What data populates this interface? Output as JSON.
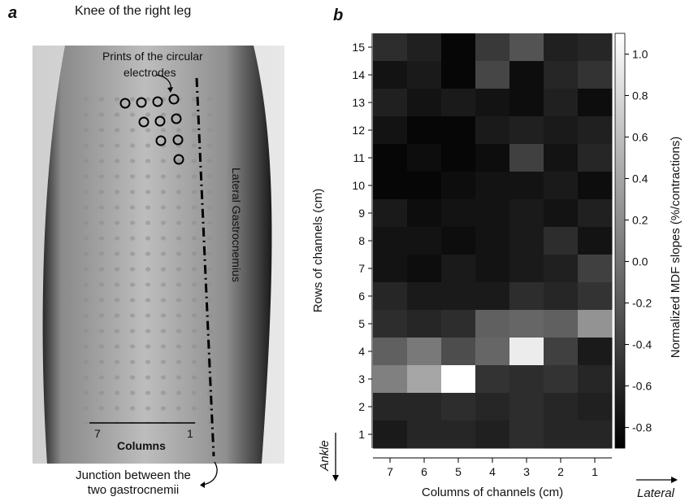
{
  "panel_a": {
    "letter": "a",
    "title": "Knee of the right leg",
    "labels": {
      "prints": "Prints of the circular electrodes",
      "muscle": "Lateral Gastrocnemius",
      "columns": "Columns",
      "col_left": "7",
      "col_right": "1"
    },
    "caption_line1": "Junction between the",
    "caption_line2": "two gastrocnemii"
  },
  "panel_b": {
    "letter": "b",
    "ankle_label": "Ankle",
    "lateral_label": "Lateral"
  },
  "chart_data": {
    "type": "heatmap",
    "xlabel": "Columns of channels (cm)",
    "ylabel": "Rows of channels (cm)",
    "colorbar_label": "Normalized MDF slopes (%/contractions)",
    "x_categories": [
      "7",
      "6",
      "5",
      "4",
      "3",
      "2",
      "1"
    ],
    "y_categories": [
      "15",
      "14",
      "13",
      "12",
      "11",
      "10",
      "9",
      "8",
      "7",
      "6",
      "5",
      "4",
      "3",
      "2",
      "1"
    ],
    "color_range": [
      -0.9,
      1.1
    ],
    "colorbar_ticks": [
      "1.0",
      "0.8",
      "0.6",
      "0.4",
      "0.2",
      "0.0",
      "-0.2",
      "-0.4",
      "-0.6",
      "-0.8"
    ],
    "colorbar_tick_values": [
      1.0,
      0.8,
      0.6,
      0.4,
      0.2,
      0.0,
      -0.2,
      -0.4,
      -0.6,
      -0.8
    ],
    "colormap": [
      "#000000",
      "#ffffff"
    ],
    "values": [
      [
        -0.55,
        -0.65,
        -0.85,
        -0.45,
        -0.25,
        -0.65,
        -0.6
      ],
      [
        -0.75,
        -0.7,
        -0.85,
        -0.35,
        -0.8,
        -0.6,
        -0.5
      ],
      [
        -0.65,
        -0.75,
        -0.7,
        -0.75,
        -0.8,
        -0.65,
        -0.8
      ],
      [
        -0.75,
        -0.85,
        -0.85,
        -0.7,
        -0.65,
        -0.7,
        -0.65
      ],
      [
        -0.85,
        -0.8,
        -0.85,
        -0.8,
        -0.4,
        -0.75,
        -0.6
      ],
      [
        -0.85,
        -0.85,
        -0.8,
        -0.75,
        -0.75,
        -0.7,
        -0.8
      ],
      [
        -0.7,
        -0.8,
        -0.75,
        -0.75,
        -0.7,
        -0.75,
        -0.65
      ],
      [
        -0.75,
        -0.75,
        -0.8,
        -0.75,
        -0.7,
        -0.55,
        -0.75
      ],
      [
        -0.75,
        -0.8,
        -0.7,
        -0.75,
        -0.7,
        -0.65,
        -0.4
      ],
      [
        -0.6,
        -0.7,
        -0.7,
        -0.7,
        -0.55,
        -0.6,
        -0.5
      ],
      [
        -0.55,
        -0.6,
        -0.55,
        -0.15,
        -0.1,
        -0.15,
        0.25
      ],
      [
        -0.15,
        0.05,
        -0.3,
        -0.1,
        0.95,
        -0.4,
        -0.7
      ],
      [
        0.1,
        0.4,
        1.1,
        -0.5,
        -0.55,
        -0.5,
        -0.6
      ],
      [
        -0.6,
        -0.6,
        -0.55,
        -0.6,
        -0.55,
        -0.6,
        -0.65
      ],
      [
        -0.7,
        -0.6,
        -0.6,
        -0.65,
        -0.55,
        -0.6,
        -0.6
      ]
    ]
  }
}
